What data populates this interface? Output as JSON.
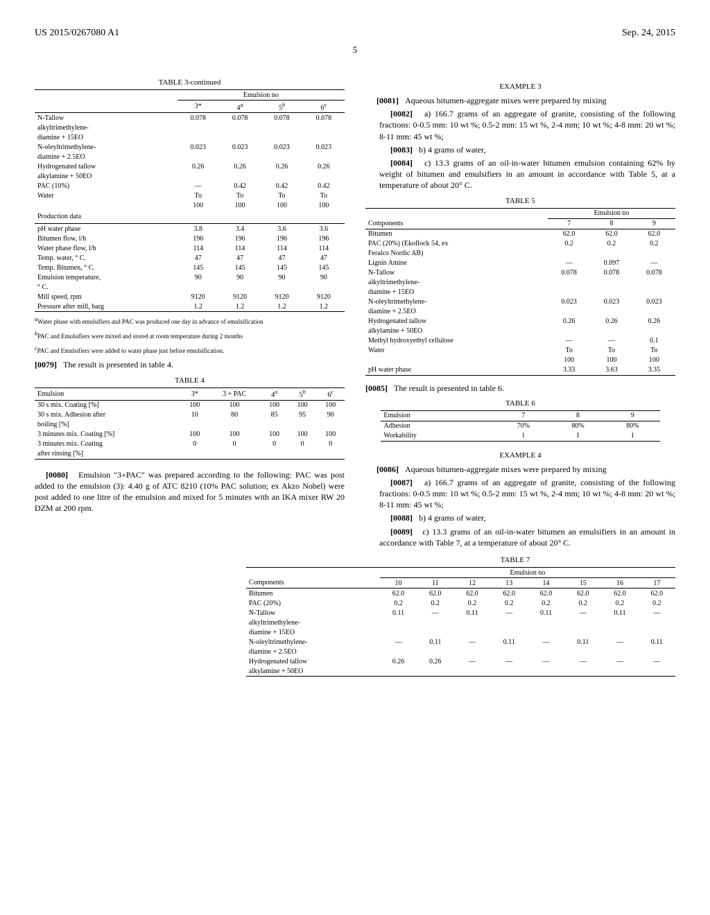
{
  "header": {
    "patent_no": "US 2015/0267080 A1",
    "date": "Sep. 24, 2015",
    "page": "5"
  },
  "table3": {
    "title": "TABLE 3-continued",
    "col_header": "Emulsion no",
    "cols": [
      "3*",
      "4",
      "5",
      "6"
    ],
    "col_sup": [
      "",
      "a",
      "b",
      "c"
    ],
    "rows": [
      {
        "label": "N-Tallow",
        "vals": [
          "0.078",
          "0.078",
          "0.078",
          "0.078"
        ]
      },
      {
        "label": "alkyltrimethylene-",
        "vals": [
          "",
          "",
          "",
          ""
        ]
      },
      {
        "label": "diamine + 15EO",
        "vals": [
          "",
          "",
          "",
          ""
        ]
      },
      {
        "label": "N-oleyltrimethylene-",
        "vals": [
          "0.023",
          "0.023",
          "0.023",
          "0.023"
        ]
      },
      {
        "label": "diamine + 2.5EO",
        "vals": [
          "",
          "",
          "",
          ""
        ]
      },
      {
        "label": "Hydrogenated tallow",
        "vals": [
          "0.26",
          "0.26",
          "0.26",
          "0.26"
        ]
      },
      {
        "label": "alkylamine + 50EO",
        "vals": [
          "",
          "",
          "",
          ""
        ]
      },
      {
        "label": "PAC (10%)",
        "vals": [
          "—",
          "0.42",
          "0.42",
          "0.42"
        ]
      },
      {
        "label": "Water",
        "vals": [
          "To",
          "To",
          "To",
          "To"
        ]
      },
      {
        "label": "",
        "vals": [
          "100",
          "100",
          "100",
          "100"
        ]
      }
    ],
    "prod_header": "Production data",
    "prod_rows": [
      {
        "label": "pH water phase",
        "vals": [
          "3.8",
          "3.4",
          "3.6",
          "3.6"
        ]
      },
      {
        "label": "Bitumen flow, l/h",
        "vals": [
          "196",
          "196",
          "196",
          "196"
        ]
      },
      {
        "label": "Water phase flow, l/h",
        "vals": [
          "114",
          "114",
          "114",
          "114"
        ]
      },
      {
        "label": "Temp. water, ° C.",
        "vals": [
          "47",
          "47",
          "47",
          "47"
        ]
      },
      {
        "label": "Temp. Bitumen, ° C.",
        "vals": [
          "145",
          "145",
          "145",
          "145"
        ]
      },
      {
        "label": "Emulsion temperature,",
        "vals": [
          "90",
          "90",
          "90",
          "90"
        ]
      },
      {
        "label": "° C.",
        "vals": [
          "",
          "",
          "",
          ""
        ]
      },
      {
        "label": "Mill speed, rpm",
        "vals": [
          "9120",
          "9120",
          "9120",
          "9120"
        ]
      },
      {
        "label": "Pressure after mill, barg",
        "vals": [
          "1.2",
          "1.2",
          "1.2",
          "1.2"
        ]
      }
    ],
    "footnotes": [
      {
        "sup": "a",
        "text": "Water phase with emulsifiers and PAC was produced one day in advance of emulsification"
      },
      {
        "sup": "b",
        "text": "PAC and Emulsifiers were mixed and stored at room temperature during 2 months"
      },
      {
        "sup": "c",
        "text": "PAC and Emulsifiers were added to water phase just before emulsification."
      }
    ]
  },
  "para79": {
    "bracket": "[0079]",
    "text": "The result is presented in table 4."
  },
  "table4": {
    "title": "TABLE 4",
    "cols": [
      "Emulsion",
      "3*",
      "3 + PAC",
      "4",
      "5",
      "6"
    ],
    "col_sup": [
      "",
      "",
      "",
      "a",
      "b",
      "c"
    ],
    "rows": [
      {
        "label": "30 s mix. Coating [%]",
        "vals": [
          "100",
          "100",
          "100",
          "100",
          "100"
        ]
      },
      {
        "label": "30 s mix. Adhesion after",
        "vals": [
          "10",
          "80",
          "85",
          "95",
          "90"
        ]
      },
      {
        "label": "boiling [%]",
        "vals": [
          "",
          "",
          "",
          "",
          ""
        ]
      },
      {
        "label": "3 minutes mix. Coating [%]",
        "vals": [
          "100",
          "100",
          "100",
          "100",
          "100"
        ]
      },
      {
        "label": "3 minutes mix. Coating",
        "vals": [
          "0",
          "0",
          "0",
          "0",
          "0"
        ]
      },
      {
        "label": "after rinsing [%]",
        "vals": [
          "",
          "",
          "",
          "",
          ""
        ]
      }
    ]
  },
  "para80": {
    "bracket": "[0080]",
    "text": "Emulsion \"3+PAC\" was prepared according to the following: PAC was post added to the emulsion (3): 4.40 g of ATC 8210 (10% PAC solution; ex Akzo Nobel) were post added to one litre of the emulsion and mixed for 5 minutes with an IKA mixer RW 20 DZM at 200 rpm."
  },
  "example3": {
    "title": "EXAMPLE 3"
  },
  "para81": {
    "bracket": "[0081]",
    "text": "Aqueous bitumen-aggregate mixes were prepared by mixing"
  },
  "para82": {
    "bracket": "[0082]",
    "text": "a) 166.7 grams of an aggregate of granite, consisting of the following fractions: 0-0.5 mm: 10 wt %; 0.5-2 mm: 15 wt %, 2-4 mm; 10 wt %; 4-8 mm: 20 wt %; 8-11 mm: 45 wt %;"
  },
  "para83": {
    "bracket": "[0083]",
    "text": "b) 4 grams of water,"
  },
  "para84": {
    "bracket": "[0084]",
    "text": "c) 13.3 grams of an oil-in-water bitumen emulsion containing 62% by weight of bitumen and emulsifiers in an amount in accordance with Table 5, at a temperature of about 20° C."
  },
  "table5": {
    "title": "TABLE 5",
    "col_header": "Emulsion no",
    "header_row": [
      "Components",
      "7",
      "8",
      "9"
    ],
    "rows": [
      {
        "label": "Bitumen",
        "vals": [
          "62.0",
          "62.0",
          "62.0"
        ]
      },
      {
        "label": "PAC (20%) (Ekoflock 54, ex",
        "vals": [
          "0.2",
          "0.2",
          "0.2"
        ]
      },
      {
        "label": "Feralco Nordic AB)",
        "vals": [
          "",
          "",
          ""
        ]
      },
      {
        "label": "Lignin Amine",
        "vals": [
          "—",
          "0.097",
          "—"
        ]
      },
      {
        "label": "N-Tallow",
        "vals": [
          "0.078",
          "0.078",
          "0.078"
        ]
      },
      {
        "label": "alkyltrimethylene-",
        "vals": [
          "",
          "",
          ""
        ]
      },
      {
        "label": "diamine + 15EO",
        "vals": [
          "",
          "",
          ""
        ]
      },
      {
        "label": "N-oleyltrimethylene-",
        "vals": [
          "0.023",
          "0.023",
          "0.023"
        ]
      },
      {
        "label": "diamine + 2.5EO",
        "vals": [
          "",
          "",
          ""
        ]
      },
      {
        "label": "Hydrogenated tallow",
        "vals": [
          "0.26",
          "0.26",
          "0.26"
        ]
      },
      {
        "label": "alkylamine + 50EO",
        "vals": [
          "",
          "",
          ""
        ]
      },
      {
        "label": "Methyl hydroxyethyl cellulose",
        "vals": [
          "—",
          "—",
          "0.1"
        ]
      },
      {
        "label": "Water",
        "vals": [
          "To",
          "To",
          "To"
        ]
      },
      {
        "label": "",
        "vals": [
          "100",
          "100",
          "100"
        ]
      },
      {
        "label": "pH water phase",
        "vals": [
          "3.33",
          "3.63",
          "3.35"
        ]
      }
    ]
  },
  "para85": {
    "bracket": "[0085]",
    "text": "The result is presented in table 6."
  },
  "table6": {
    "title": "TABLE 6",
    "header_row": [
      "Emulsion",
      "7",
      "8",
      "9"
    ],
    "rows": [
      {
        "label": "Adhesion",
        "vals": [
          "70%",
          "80%",
          "80%"
        ]
      },
      {
        "label": "Workability",
        "vals": [
          "1",
          "1",
          "1"
        ]
      }
    ]
  },
  "example4": {
    "title": "EXAMPLE 4"
  },
  "para86": {
    "bracket": "[0086]",
    "text": "Aqueous bitumen-aggregate mixes were prepared by mixing"
  },
  "para87": {
    "bracket": "[0087]",
    "text": "a) 166.7 grams of an aggregate of granite, consisting of the following fractions: 0-0.5 mm: 10 wt %; 0.5-2 mm: 15 wt %, 2-4 mm; 10 wt %; 4-8 mm: 20 wt %; 8-11 mm: 45 wt %;"
  },
  "para88": {
    "bracket": "[0088]",
    "text": "b) 4 grams of water,"
  },
  "para89": {
    "bracket": "[0089]",
    "text": "c) 13.3 grams of an oil-in-water bitumen an emulsifiers in an amount in accordance with Table 7, at a temperature of about 20° C."
  },
  "table7": {
    "title": "TABLE 7",
    "col_header": "Emulsion no",
    "header_row": [
      "Components",
      "10",
      "11",
      "12",
      "13",
      "14",
      "15",
      "16",
      "17"
    ],
    "rows": [
      {
        "label": "Bitumen",
        "vals": [
          "62.0",
          "62.0",
          "62.0",
          "62.0",
          "62.0",
          "62.0",
          "62.0",
          "62.0"
        ]
      },
      {
        "label": "PAC (20%)",
        "vals": [
          "0.2",
          "0.2",
          "0.2",
          "0.2",
          "0.2",
          "0.2",
          "0.2",
          "0.2"
        ]
      },
      {
        "label": "N-Tallow",
        "vals": [
          "0.11",
          "—",
          "0.11",
          "—",
          "0.11",
          "—",
          "0.11",
          "—"
        ]
      },
      {
        "label": "alkyltrimethylene-",
        "vals": [
          "",
          "",
          "",
          "",
          "",
          "",
          "",
          ""
        ]
      },
      {
        "label": "diamine + 15EO",
        "vals": [
          "",
          "",
          "",
          "",
          "",
          "",
          "",
          ""
        ]
      },
      {
        "label": "N-oleyltrimethylene-",
        "vals": [
          "—",
          "0.11",
          "—",
          "0.11",
          "—",
          "0.11",
          "—",
          "0.11"
        ]
      },
      {
        "label": "diamine + 2.5EO",
        "vals": [
          "",
          "",
          "",
          "",
          "",
          "",
          "",
          ""
        ]
      },
      {
        "label": "Hydrogenated tallow",
        "vals": [
          "0.26",
          "0.26",
          "—",
          "—",
          "—",
          "—",
          "—",
          "—"
        ]
      },
      {
        "label": "alkylamine + 50EO",
        "vals": [
          "",
          "",
          "",
          "",
          "",
          "",
          "",
          ""
        ]
      }
    ]
  }
}
